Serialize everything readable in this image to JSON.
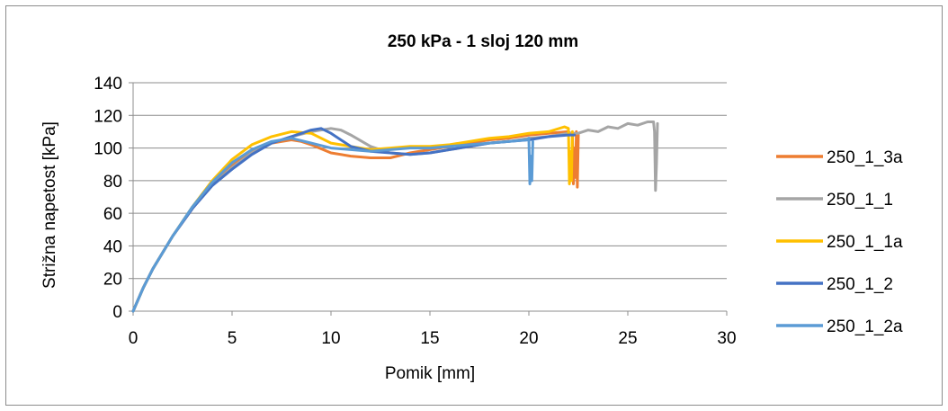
{
  "chart_data": {
    "type": "line",
    "title": "250 kPa - 1 sloj 120 mm",
    "xlabel": "Pomik [mm]",
    "ylabel": "Strižna napetost [kPa]",
    "xlim": [
      0,
      30
    ],
    "ylim": [
      0,
      140
    ],
    "xticks": [
      0,
      5,
      10,
      15,
      20,
      25,
      30
    ],
    "yticks": [
      0,
      20,
      40,
      60,
      80,
      100,
      120,
      140
    ],
    "grid": "horizontal",
    "legend_position": "right",
    "series": [
      {
        "name": "250_1_3a",
        "color": "#ed7d31",
        "x": [
          0,
          0.5,
          1,
          2,
          3,
          4,
          5,
          6,
          7,
          8,
          8.5,
          9,
          10,
          11,
          12,
          13,
          14,
          15,
          16,
          17,
          18,
          19,
          20,
          21,
          22,
          22.2,
          22.25,
          22.3,
          22.35,
          22.4,
          22.45,
          22.5
        ],
        "y": [
          0,
          14,
          26,
          46,
          63,
          78,
          89,
          98,
          103,
          105,
          104,
          102,
          97,
          95,
          94,
          94,
          97,
          99,
          101,
          103,
          105,
          106,
          108,
          109,
          110,
          108,
          78,
          100,
          82,
          110,
          76,
          108
        ]
      },
      {
        "name": "250_1_1",
        "color": "#a5a5a5",
        "x": [
          0,
          0.5,
          1,
          2,
          3,
          4,
          5,
          6,
          7,
          8,
          9,
          10,
          10.5,
          11,
          12,
          13,
          14,
          15,
          16,
          17,
          18,
          19,
          20,
          21,
          22,
          22.5,
          23,
          23.5,
          24,
          24.5,
          25,
          25.5,
          26,
          26.3,
          26.35,
          26.4,
          26.45,
          26.5
        ],
        "y": [
          0,
          14,
          26,
          46,
          63,
          77,
          88,
          97,
          103,
          107,
          110,
          112,
          111,
          108,
          101,
          97,
          96,
          97,
          99,
          101,
          103,
          104,
          106,
          107,
          109,
          109,
          111,
          110,
          113,
          112,
          115,
          114,
          116,
          116,
          110,
          74,
          90,
          115
        ]
      },
      {
        "name": "250_1_1a",
        "color": "#ffc000",
        "x": [
          0,
          0.5,
          1,
          2,
          3,
          4,
          5,
          6,
          7,
          8,
          9,
          10,
          11,
          12,
          13,
          14,
          15,
          16,
          17,
          18,
          19,
          20,
          21,
          21.8,
          22,
          22.05,
          22.1,
          22.15,
          22.2
        ],
        "y": [
          0,
          14,
          26,
          46,
          64,
          80,
          93,
          102,
          107,
          110,
          109,
          103,
          101,
          99,
          100,
          101,
          101,
          102,
          104,
          106,
          107,
          109,
          110,
          113,
          112,
          78,
          98,
          80,
          110
        ]
      },
      {
        "name": "250_1_2",
        "color": "#4472c4",
        "x": [
          0,
          0.5,
          1,
          2,
          3,
          4,
          5,
          6,
          7,
          8,
          9,
          9.5,
          10,
          11,
          12,
          13,
          14,
          15,
          16,
          17,
          18,
          19,
          20,
          21,
          22,
          22.3
        ],
        "y": [
          0,
          14,
          26,
          46,
          63,
          77,
          87,
          96,
          103,
          107,
          111,
          112,
          109,
          101,
          98,
          97,
          96,
          97,
          99,
          101,
          103,
          104,
          105,
          107,
          108,
          108
        ]
      },
      {
        "name": "250_1_2a",
        "color": "#5b9bd5",
        "x": [
          0,
          0.5,
          1,
          2,
          3,
          4,
          5,
          6,
          7,
          8,
          9,
          10,
          11,
          12,
          13,
          14,
          15,
          16,
          17,
          18,
          19,
          19.9,
          20,
          20.05,
          20.1,
          20.15,
          20.2
        ],
        "y": [
          0,
          14,
          26,
          46,
          64,
          79,
          91,
          99,
          104,
          106,
          103,
          100,
          99,
          98,
          99,
          100,
          100,
          101,
          102,
          103,
          104,
          105,
          106,
          78,
          95,
          80,
          104
        ]
      }
    ]
  }
}
